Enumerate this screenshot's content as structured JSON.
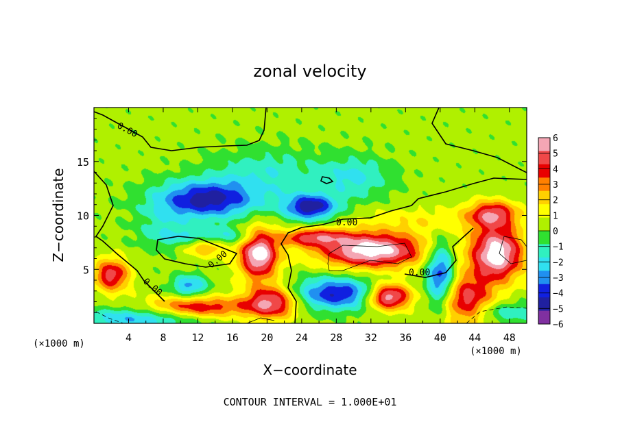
{
  "chart_data": {
    "type": "heatmap",
    "title": "zonal velocity",
    "xlabel": "X−coordinate",
    "ylabel": "Z−coordinate",
    "x_unit_left": "(×1000 m)",
    "x_unit_right": "(×1000 m)",
    "xlim": [
      0,
      50
    ],
    "ylim": [
      0,
      20
    ],
    "xticks": [
      4,
      8,
      12,
      16,
      20,
      24,
      28,
      32,
      36,
      40,
      44,
      48
    ],
    "yticks": [
      5,
      10,
      15
    ],
    "contour_label": "0.00",
    "footer": "CONTOUR INTERVAL = 1.000E+01",
    "colorbar": {
      "ticks": [
        6,
        5,
        4,
        3,
        2,
        1,
        0,
        -1,
        -2,
        -3,
        -4,
        -5,
        -6
      ],
      "tick_labels": [
        "6",
        "5",
        "4",
        "3",
        "2",
        "1",
        "0",
        "−1",
        "−2",
        "−3",
        "−4",
        "−5",
        "−6"
      ],
      "range": [
        -6,
        6
      ],
      "colors": [
        "#f4a6b4",
        "#f04848",
        "#e80000",
        "#ff8000",
        "#ffd000",
        "#ffff00",
        "#b0f000",
        "#30e030",
        "#30f0c0",
        "#30e0f0",
        "#2090f0",
        "#1020e0",
        "#2020a0",
        "#8030a0"
      ]
    },
    "background_value": 0.3,
    "features": [
      {
        "x": 13,
        "z": 11.5,
        "sx": 6,
        "sz": 1.8,
        "value": -5
      },
      {
        "x": 25,
        "z": 10.8,
        "sx": 3,
        "sz": 1.2,
        "value": -5.2
      },
      {
        "x": 30,
        "z": 13.5,
        "sx": 4,
        "sz": 2,
        "value": -2.2
      },
      {
        "x": 20,
        "z": 14,
        "sx": 6,
        "sz": 2.2,
        "value": -1.8
      },
      {
        "x": 19,
        "z": 6.5,
        "sx": 2.2,
        "sz": 2.3,
        "value": 6.5
      },
      {
        "x": 32,
        "z": 6.8,
        "sx": 6,
        "sz": 1.6,
        "value": 6.5
      },
      {
        "x": 46.5,
        "z": 6.5,
        "sx": 3,
        "sz": 2.5,
        "value": 6.5
      },
      {
        "x": 46,
        "z": 10.2,
        "sx": 2.8,
        "sz": 1.2,
        "value": 4.2
      },
      {
        "x": 2,
        "z": 4.5,
        "sx": 2,
        "sz": 1.5,
        "value": 4.5
      },
      {
        "x": 34,
        "z": 2.5,
        "sx": 2.5,
        "sz": 1.2,
        "value": 6.2
      },
      {
        "x": 20.5,
        "z": 2.0,
        "sx": 3,
        "sz": 1.5,
        "value": 5
      },
      {
        "x": 28,
        "z": 2.8,
        "sx": 5,
        "sz": 1.5,
        "value": -4.6
      },
      {
        "x": 40,
        "z": 4.5,
        "sx": 1.6,
        "sz": 3,
        "value": -4.6
      },
      {
        "x": 14,
        "z": 8,
        "sx": 6,
        "sz": 0.9,
        "value": -2.5
      },
      {
        "x": 11,
        "z": 3.5,
        "sx": 2,
        "sz": 1,
        "value": -3.2
      },
      {
        "x": 13,
        "z": 7.2,
        "sx": 2.5,
        "sz": 0.9,
        "value": 3
      },
      {
        "x": 8,
        "z": 9,
        "sx": 3,
        "sz": 2,
        "value": -1.3
      },
      {
        "x": 38,
        "z": 9.5,
        "sx": 8,
        "sz": 1.3,
        "value": 1.2
      },
      {
        "x": 5,
        "z": 0.5,
        "sx": 7,
        "sz": 1,
        "value": -3
      },
      {
        "x": 47,
        "z": 1.0,
        "sx": 5,
        "sz": 1,
        "value": -2
      },
      {
        "x": 12,
        "z": 1.5,
        "sx": 6,
        "sz": 1,
        "value": 4
      },
      {
        "x": 43,
        "z": 2,
        "sx": 3,
        "sz": 2.5,
        "value": 4.5
      },
      {
        "x": 25,
        "z": 8,
        "sx": 4,
        "sz": 0.8,
        "value": 4
      }
    ]
  }
}
